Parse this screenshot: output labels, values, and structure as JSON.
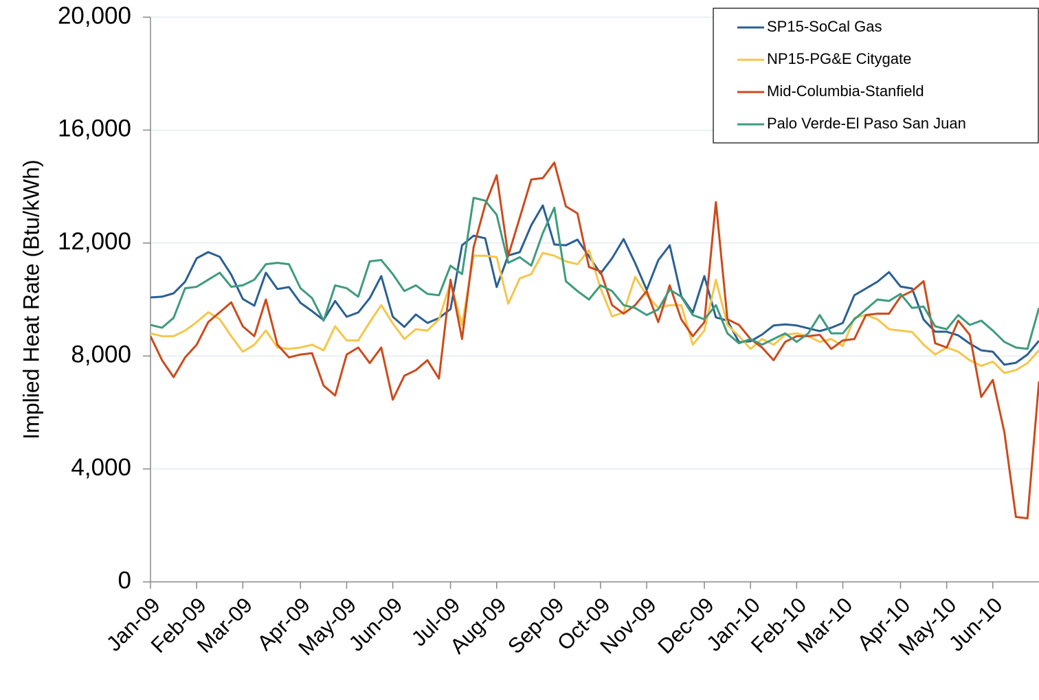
{
  "chart_data": {
    "type": "line",
    "y_label": "Implied Heat Rate (Btu/kWh)",
    "categories": [
      "Jan-09",
      null,
      null,
      null,
      "Feb-09",
      null,
      null,
      null,
      "Mar-09",
      null,
      null,
      null,
      null,
      "Apr-09",
      null,
      null,
      null,
      "May-09",
      null,
      null,
      null,
      "Jun-09",
      null,
      null,
      null,
      null,
      "Jul-09",
      null,
      null,
      null,
      "Aug-09",
      null,
      null,
      null,
      null,
      "Sep-09",
      null,
      null,
      null,
      "Oct-09",
      null,
      null,
      null,
      "Nov-09",
      null,
      null,
      null,
      null,
      "Dec-09",
      null,
      null,
      null,
      "Jan-10",
      null,
      null,
      null,
      "Feb-10",
      null,
      null,
      null,
      "Mar-10",
      null,
      null,
      null,
      null,
      "Apr-10",
      null,
      null,
      null,
      "May-10",
      null,
      null,
      null,
      "Jun-10",
      null,
      null,
      null,
      null
    ],
    "series": [
      {
        "name": "SP15-SoCal Gas",
        "color": "#2a5f93",
        "values": [
          10073,
          10100,
          10220,
          10630,
          11460,
          11680,
          11510,
          10880,
          10020,
          9780,
          10950,
          10370,
          10440,
          9880,
          9590,
          9270,
          9950,
          9390,
          9540,
          10050,
          10830,
          9390,
          9030,
          9470,
          9170,
          9340,
          9660,
          11920,
          12260,
          12170,
          10440,
          11560,
          11680,
          12630,
          13330,
          11950,
          11920,
          12120,
          11530,
          10920,
          11460,
          12140,
          11290,
          10340,
          11390,
          11920,
          10120,
          9540,
          10830,
          9370,
          9250,
          8490,
          8520,
          8760,
          9080,
          9120,
          9080,
          8980,
          8880,
          9000,
          9170,
          10150,
          10390,
          10630,
          10970,
          10460,
          10390,
          9290,
          8860,
          8860,
          8730,
          8440,
          8200,
          8150,
          7690,
          7760,
          8050,
          8540
        ]
      },
      {
        "name": "NP15-PG&E Citygate",
        "color": "#f5c648",
        "values": [
          8800,
          8700,
          8700,
          8900,
          9200,
          9550,
          9300,
          8700,
          8150,
          8400,
          8900,
          8300,
          8250,
          8300,
          8400,
          8200,
          9050,
          8550,
          8550,
          9200,
          9800,
          9150,
          8600,
          8950,
          8900,
          9300,
          10600,
          9100,
          11550,
          11550,
          11500,
          9850,
          10750,
          10900,
          11650,
          11550,
          11350,
          11250,
          11750,
          10400,
          9400,
          9550,
          10800,
          10150,
          9700,
          9800,
          9800,
          8400,
          8900,
          10700,
          9100,
          8700,
          8250,
          8600,
          8400,
          8750,
          8800,
          8700,
          8500,
          8600,
          8350,
          9350,
          9450,
          9300,
          8950,
          8900,
          8850,
          8400,
          8050,
          8300,
          8150,
          7850,
          7650,
          7800,
          7400,
          7500,
          7750,
          8200
        ]
      },
      {
        "name": "Mid-Columbia-Stanfield",
        "color": "#cc4a1b",
        "values": [
          8700,
          7850,
          7250,
          7950,
          8400,
          9200,
          9550,
          9900,
          9050,
          8700,
          10000,
          8400,
          7950,
          8050,
          8100,
          6950,
          6600,
          8050,
          8300,
          7750,
          8300,
          6450,
          7300,
          7500,
          7850,
          7200,
          10700,
          8600,
          11850,
          13350,
          14400,
          11550,
          12900,
          14250,
          14300,
          14850,
          13300,
          13050,
          11150,
          11000,
          9800,
          9500,
          9800,
          10300,
          9200,
          10500,
          9300,
          8700,
          9200,
          13450,
          9300,
          9100,
          8600,
          8300,
          7850,
          8500,
          8700,
          8700,
          8750,
          8250,
          8550,
          8600,
          9450,
          9500,
          9500,
          10100,
          10300,
          10650,
          8450,
          8300,
          9250,
          8750,
          6550,
          7150,
          5300,
          2300,
          2250,
          7100
        ]
      },
      {
        "name": "Palo Verde-El Paso San Juan",
        "color": "#3d9b7e",
        "values": [
          9100,
          9000,
          9350,
          10400,
          10450,
          10700,
          10950,
          10450,
          10500,
          10700,
          11250,
          11300,
          11250,
          10400,
          10050,
          9250,
          10500,
          10400,
          10100,
          11350,
          11400,
          10900,
          10300,
          10500,
          10200,
          10150,
          11200,
          10900,
          13600,
          13500,
          13000,
          11300,
          11500,
          11200,
          12350,
          13250,
          10650,
          10300,
          10000,
          10500,
          10300,
          9800,
          9700,
          9450,
          9650,
          10350,
          10100,
          9450,
          9300,
          9800,
          8800,
          8450,
          8600,
          8400,
          8600,
          8800,
          8500,
          8800,
          9450,
          8800,
          8800,
          9300,
          9650,
          10000,
          9950,
          10200,
          9700,
          9750,
          9050,
          8950,
          9450,
          9100,
          9250,
          8900,
          8500,
          8300,
          8250,
          9700
        ]
      }
    ],
    "ylim": [
      0,
      20000
    ],
    "yticks": [
      0,
      {
        "value": 4000,
        "label": "4,000"
      },
      {
        "value": 8000,
        "label": "8,000"
      },
      {
        "value": 12000,
        "label": "12,000"
      },
      {
        "value": 16000,
        "label": "16,000"
      },
      {
        "value": 20000,
        "label": "20,000"
      }
    ],
    "grid": true,
    "legend": "top-right"
  }
}
